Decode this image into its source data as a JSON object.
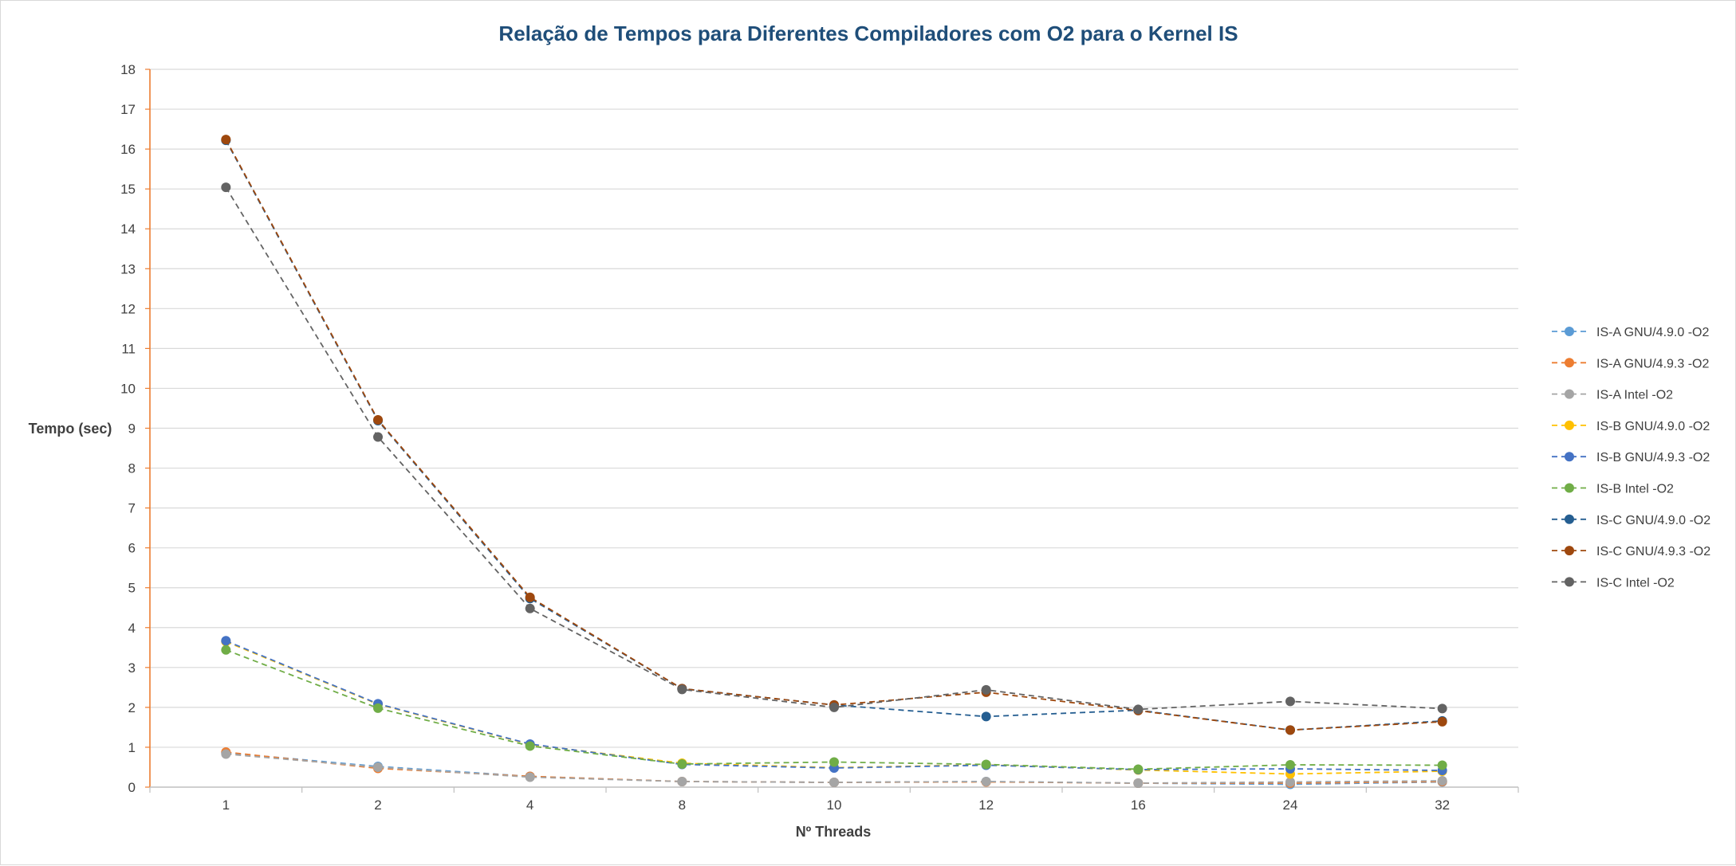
{
  "chart_data": {
    "type": "line",
    "title": "Relação de Tempos para Diferentes Compiladores com O2 para o Kernel IS",
    "xlabel": "Nº Threads",
    "ylabel": "Tempo (sec)",
    "categories": [
      "1",
      "2",
      "4",
      "8",
      "10",
      "12",
      "16",
      "24",
      "32"
    ],
    "ylim": [
      0,
      18
    ],
    "yticks": [
      "0",
      "1",
      "2",
      "3",
      "4",
      "5",
      "6",
      "7",
      "8",
      "9",
      "10",
      "11",
      "12",
      "13",
      "14",
      "15",
      "16",
      "17",
      "18"
    ],
    "grid": "horizontal",
    "legend_position": "right",
    "line_style": "dashed",
    "series": [
      {
        "name": "IS-A GNU/4.9.0 -O2",
        "color": "#5b9bd5",
        "values": [
          0.86,
          0.52,
          0.27,
          0.14,
          0.12,
          0.14,
          0.1,
          0.07,
          0.13
        ]
      },
      {
        "name": "IS-A GNU/4.9.3 -O2",
        "color": "#ed7d31",
        "values": [
          0.88,
          0.47,
          0.27,
          0.14,
          0.12,
          0.13,
          0.1,
          0.1,
          0.14
        ]
      },
      {
        "name": "IS-A Intel -O2",
        "color": "#a5a5a5",
        "values": [
          0.83,
          0.5,
          0.25,
          0.14,
          0.12,
          0.14,
          0.1,
          0.13,
          0.16
        ]
      },
      {
        "name": "IS-B GNU/4.9.0 -O2",
        "color": "#ffc000",
        "values": [
          3.65,
          2.08,
          1.07,
          0.6,
          0.49,
          0.56,
          0.43,
          0.33,
          0.4
        ]
      },
      {
        "name": "IS-B GNU/4.9.3 -O2",
        "color": "#4472c4",
        "values": [
          3.67,
          2.09,
          1.08,
          0.57,
          0.48,
          0.55,
          0.44,
          0.46,
          0.42
        ]
      },
      {
        "name": "IS-B Intel -O2",
        "color": "#70ad47",
        "values": [
          3.44,
          1.98,
          1.03,
          0.58,
          0.63,
          0.57,
          0.45,
          0.56,
          0.55
        ]
      },
      {
        "name": "IS-C GNU/4.9.0 -O2",
        "color": "#255e91",
        "values": [
          16.22,
          9.19,
          4.73,
          2.47,
          2.06,
          1.77,
          1.93,
          1.43,
          1.66
        ]
      },
      {
        "name": "IS-C GNU/4.9.3 -O2",
        "color": "#9e480e",
        "values": [
          16.24,
          9.21,
          4.76,
          2.47,
          2.06,
          2.38,
          1.92,
          1.43,
          1.64
        ]
      },
      {
        "name": "IS-C Intel -O2",
        "color": "#636363",
        "values": [
          15.04,
          8.78,
          4.48,
          2.45,
          2.0,
          2.44,
          1.95,
          2.15,
          1.97
        ]
      }
    ]
  }
}
